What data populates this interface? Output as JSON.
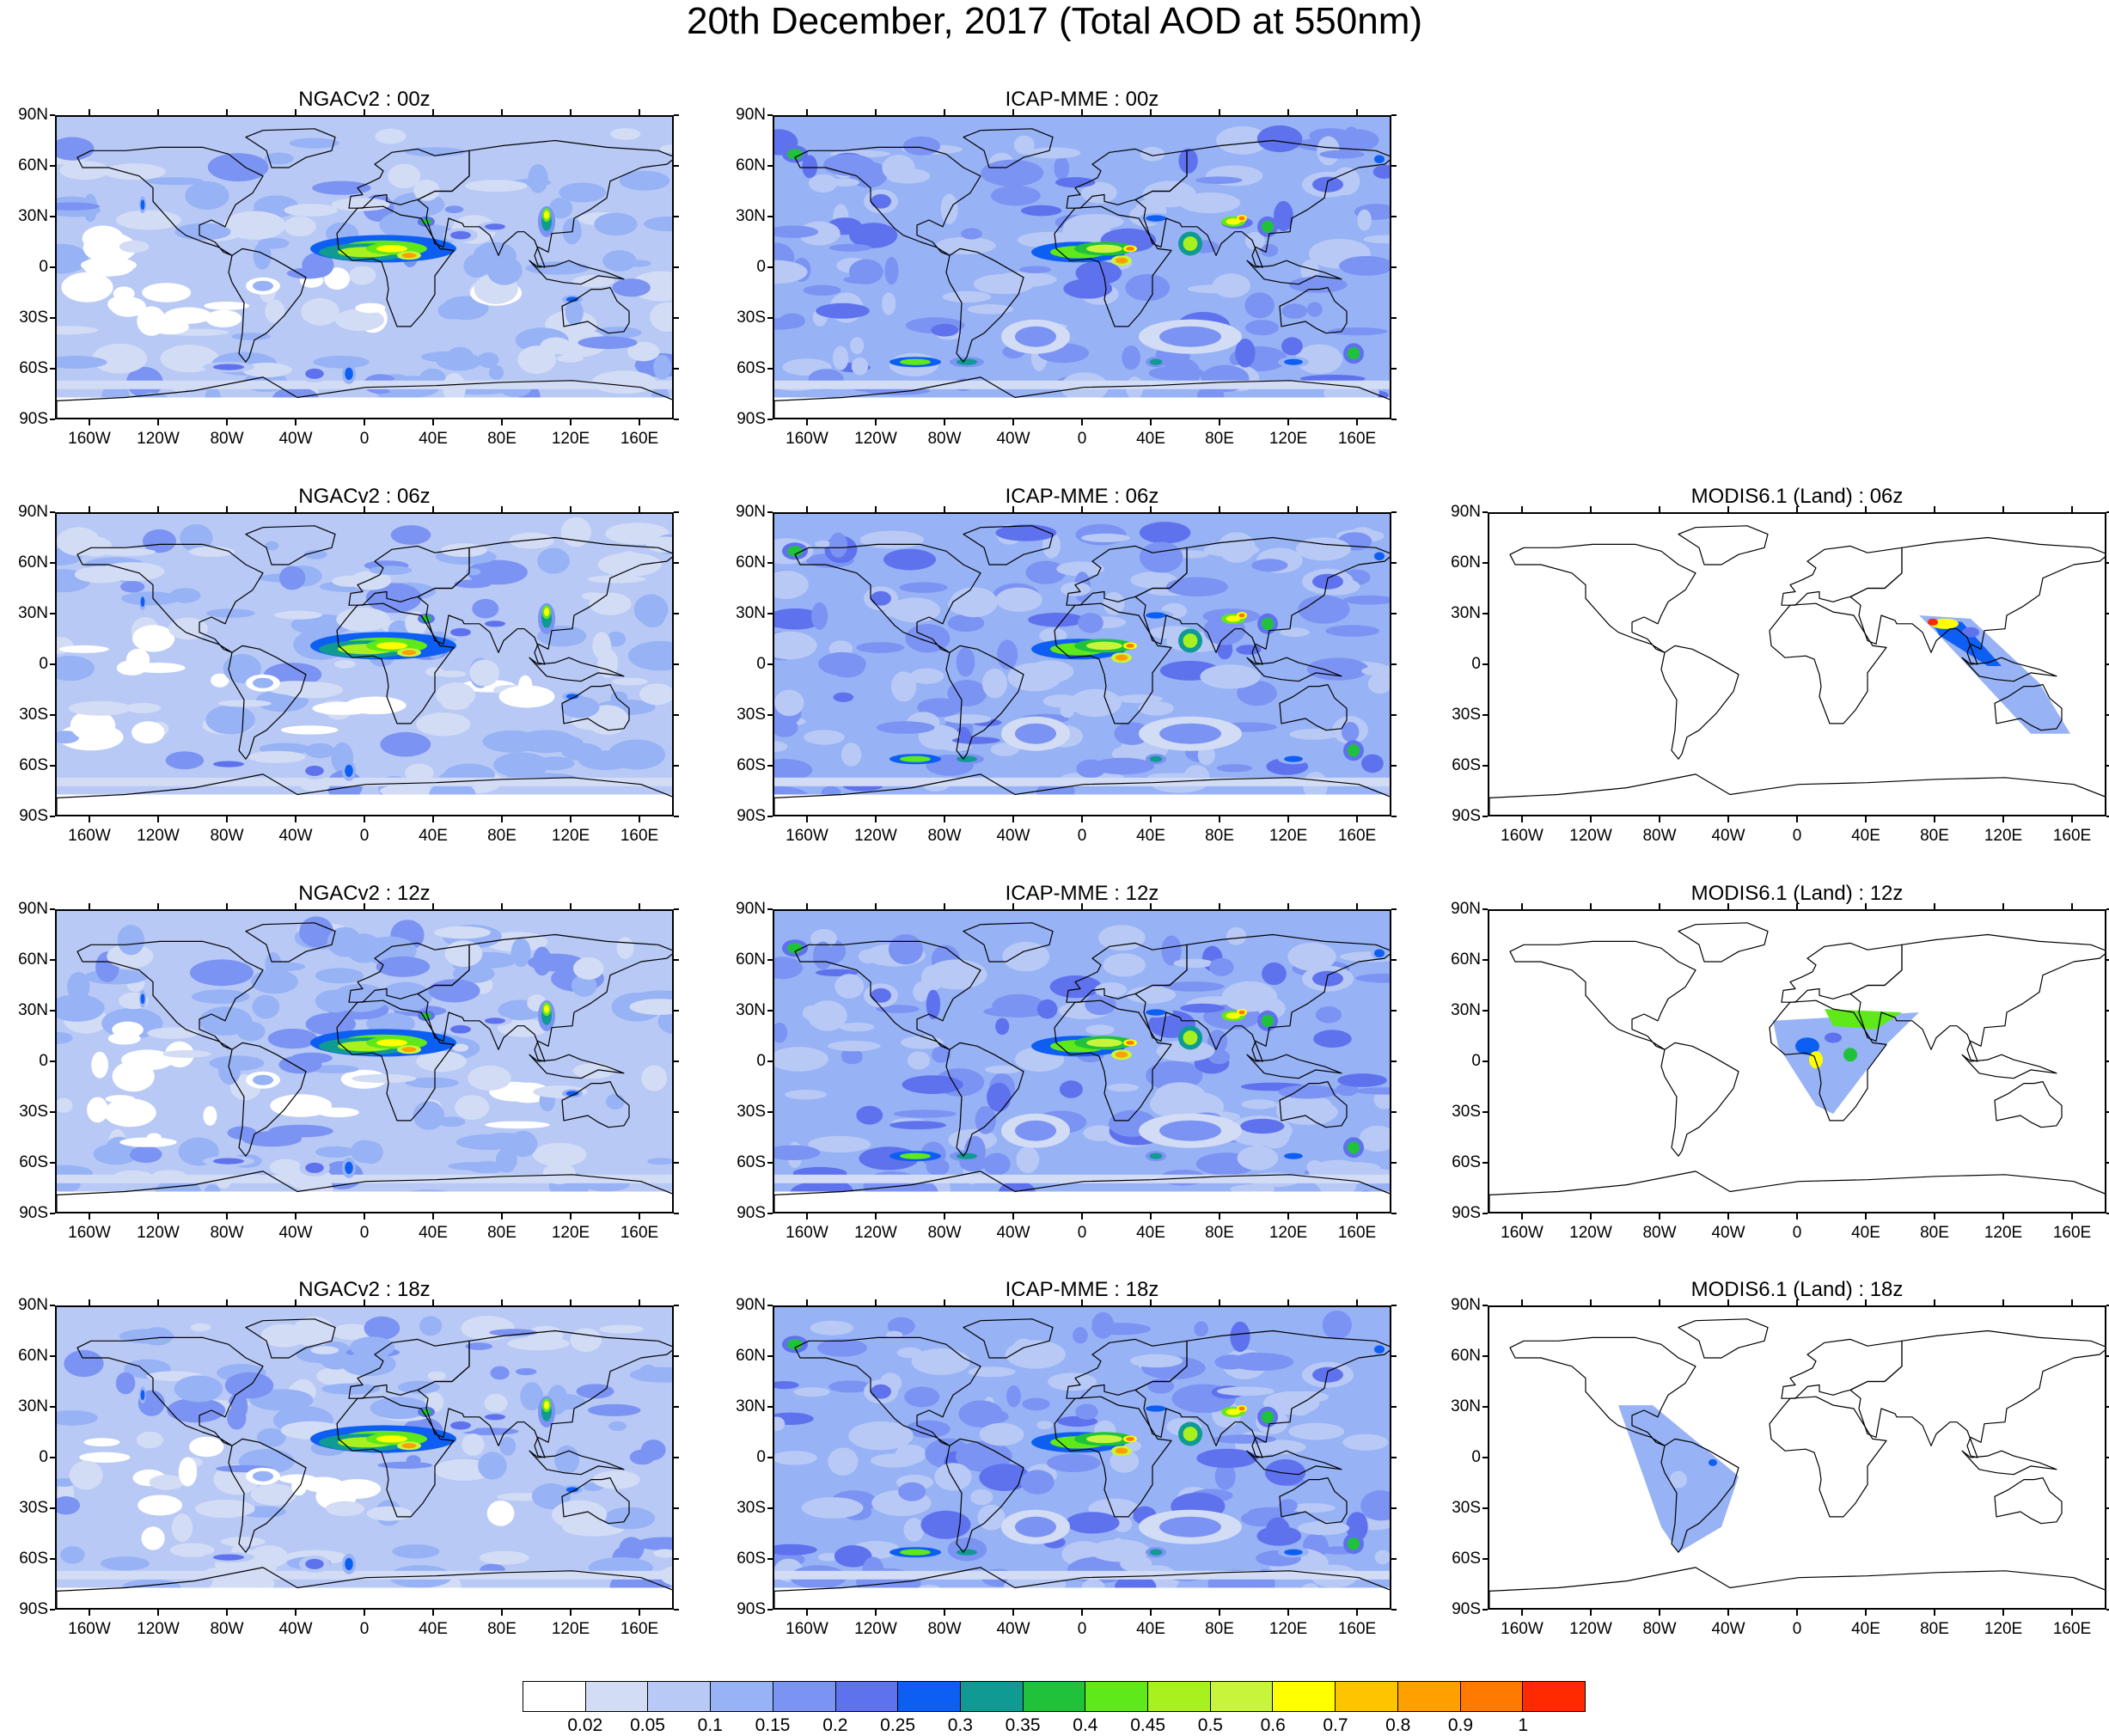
{
  "title": "20th December, 2017 (Total AOD at 550nm)",
  "lat_labels": [
    "90N",
    "60N",
    "30N",
    "0",
    "30S",
    "60S",
    "90S"
  ],
  "lon_labels": [
    "160W",
    "120W",
    "80W",
    "40W",
    "0",
    "40E",
    "80E",
    "120E",
    "160E"
  ],
  "panels": [
    {
      "title": "NGACv2 : 00z",
      "model": "ngac",
      "hour": "00z"
    },
    {
      "title": "ICAP-MME : 00z",
      "model": "icap",
      "hour": "00z"
    },
    null,
    {
      "title": "NGACv2 : 06z",
      "model": "ngac",
      "hour": "06z"
    },
    {
      "title": "ICAP-MME : 06z",
      "model": "icap",
      "hour": "06z"
    },
    {
      "title": "MODIS6.1 (Land) : 06z",
      "model": "modis",
      "hour": "06z",
      "swath": "asia"
    },
    {
      "title": "NGACv2 : 12z",
      "model": "ngac",
      "hour": "12z"
    },
    {
      "title": "ICAP-MME : 12z",
      "model": "icap",
      "hour": "12z"
    },
    {
      "title": "MODIS6.1 (Land) : 12z",
      "model": "modis",
      "hour": "12z",
      "swath": "africa"
    },
    {
      "title": "NGACv2 : 18z",
      "model": "ngac",
      "hour": "18z"
    },
    {
      "title": "ICAP-MME : 18z",
      "model": "icap",
      "hour": "18z"
    },
    {
      "title": "MODIS6.1 (Land) : 18z",
      "model": "modis",
      "hour": "18z",
      "swath": "samerica"
    }
  ],
  "colorbar": {
    "labels": [
      "0.02",
      "0.05",
      "0.1",
      "0.15",
      "0.2",
      "0.25",
      "0.3",
      "0.35",
      "0.4",
      "0.45",
      "0.5",
      "0.6",
      "0.7",
      "0.8",
      "0.9",
      "1"
    ],
    "colors": [
      "#ffffff",
      "#d3dcf5",
      "#b8c9f5",
      "#97b2f5",
      "#7b93f2",
      "#5f72ee",
      "#0d5ef2",
      "#0f9a94",
      "#1fc23a",
      "#5fe81a",
      "#a8f01e",
      "#c8f53c",
      "#ffff00",
      "#ffc400",
      "#ffa000",
      "#ff7a00",
      "#ff2a00"
    ]
  }
}
